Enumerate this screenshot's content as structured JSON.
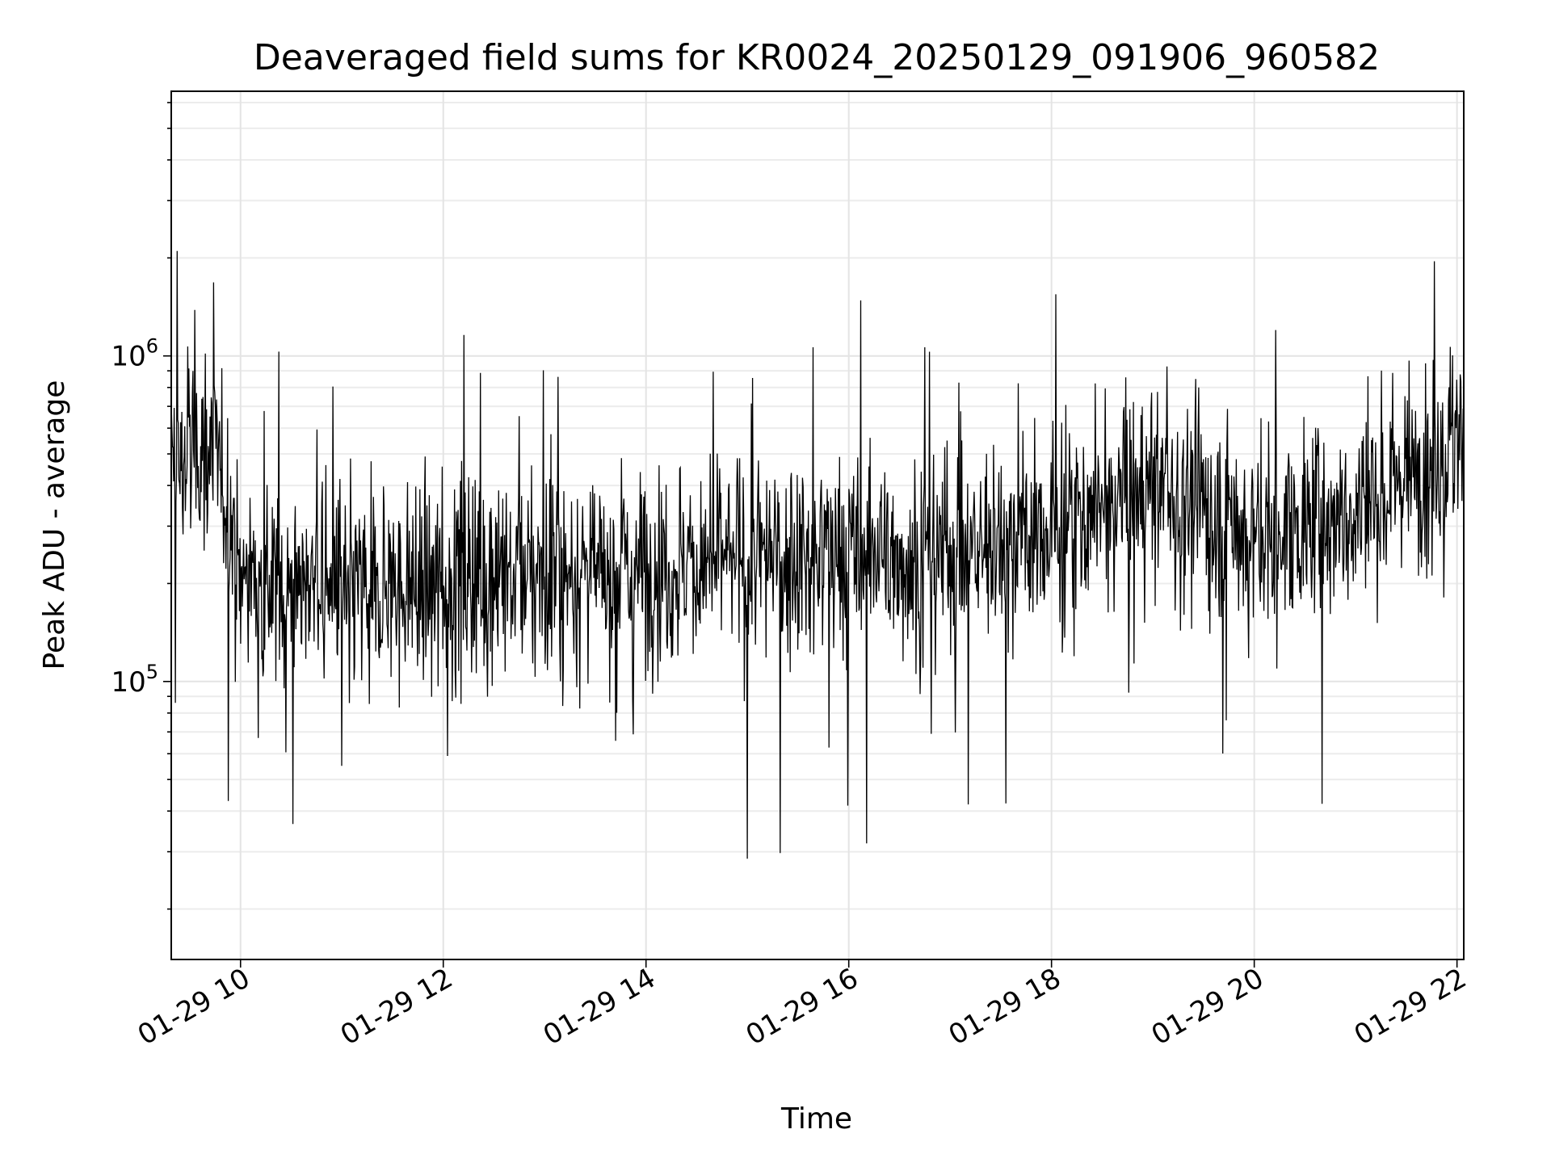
{
  "chart_data": {
    "type": "line",
    "title": "Deaveraged field sums for KR0024_20250129_091906_960582",
    "xlabel": "Time",
    "ylabel": "Peak ADU - average",
    "x_range": [
      "01-29 09:19",
      "01-29 22:04"
    ],
    "y_range": [
      14000,
      6500000
    ],
    "y_scale": "log",
    "grid": true,
    "legend": "none",
    "x_ticks": [
      "01-29 10",
      "01-29 12",
      "01-29 14",
      "01-29 16",
      "01-29 18",
      "01-29 20",
      "01-29 22"
    ],
    "y_ticks": [
      {
        "base": "10",
        "exp": "5",
        "value": 100000
      },
      {
        "base": "10",
        "exp": "6",
        "value": 1000000
      }
    ],
    "series": [
      {
        "color": "#000000",
        "note_points": "approximate envelope samples (time, value)",
        "x": [
          "01-29 09:19",
          "01-29 09:30",
          "01-29 09:40",
          "01-29 09:50",
          "01-29 10:00",
          "01-29 10:30",
          "01-29 11:00",
          "01-29 11:30",
          "01-29 12:00",
          "01-29 12:30",
          "01-29 13:00",
          "01-29 13:30",
          "01-29 14:00",
          "01-29 14:30",
          "01-29 15:00",
          "01-29 15:30",
          "01-29 16:00",
          "01-29 16:30",
          "01-29 17:00",
          "01-29 17:30",
          "01-29 18:00",
          "01-29 18:30",
          "01-29 19:00",
          "01-29 19:30",
          "01-29 20:00",
          "01-29 20:30",
          "01-29 21:00",
          "01-29 21:30",
          "01-29 22:00"
        ],
        "values": [
          450000,
          500000,
          550000,
          400000,
          210000,
          200000,
          190000,
          190000,
          200000,
          210000,
          210000,
          220000,
          220000,
          230000,
          230000,
          240000,
          240000,
          240000,
          250000,
          260000,
          280000,
          350000,
          400000,
          330000,
          280000,
          300000,
          330000,
          450000,
          550000
        ]
      }
    ]
  }
}
